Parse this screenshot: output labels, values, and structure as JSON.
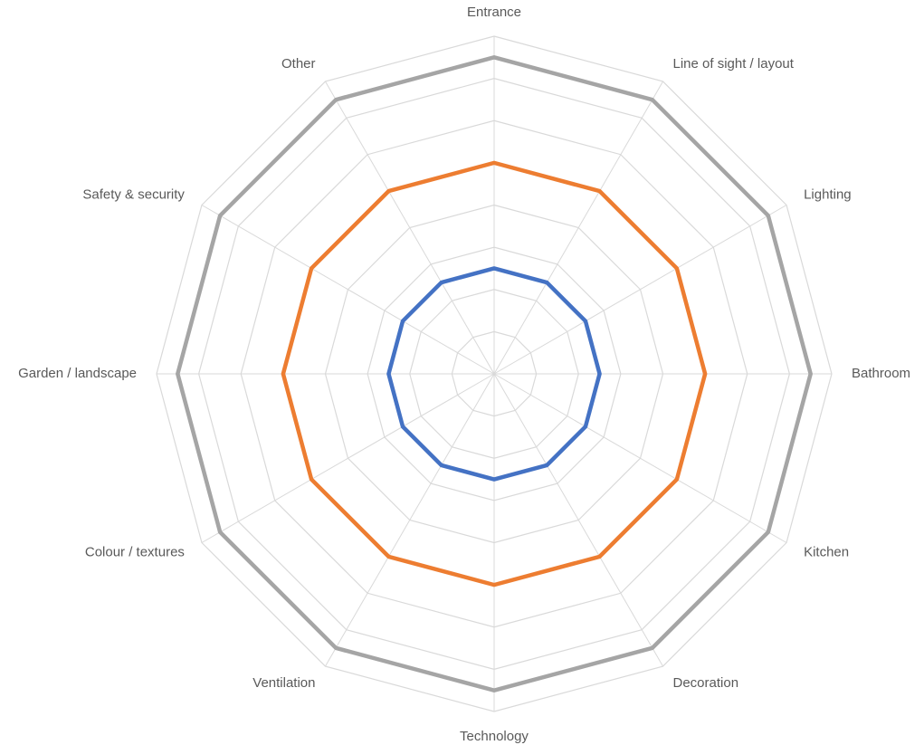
{
  "chart_data": {
    "type": "radar",
    "categories": [
      "Entrance",
      "Line of sight / layout",
      "Lighting",
      "Bathroom",
      "Kitchen",
      "Decoration",
      "Technology",
      "Ventilation",
      "Colour / textures",
      "Garden / landscape",
      "Safety & security",
      "Other"
    ],
    "rlim": [
      0,
      8
    ],
    "grid": true,
    "legend": "none",
    "series": [
      {
        "color": "#4472c4",
        "values": [
          2.5,
          2.5,
          2.5,
          2.5,
          2.5,
          2.5,
          2.5,
          2.5,
          2.5,
          2.5,
          2.5,
          2.5
        ]
      },
      {
        "color": "#ed7d31",
        "values": [
          5,
          5,
          5,
          5,
          5,
          5,
          5,
          5,
          5,
          5,
          5,
          5
        ]
      },
      {
        "color": "#a5a5a5",
        "values": [
          7.5,
          7.5,
          7.5,
          7.5,
          7.5,
          7.5,
          7.5,
          7.5,
          7.5,
          7.5,
          7.5,
          7.5
        ]
      }
    ]
  }
}
